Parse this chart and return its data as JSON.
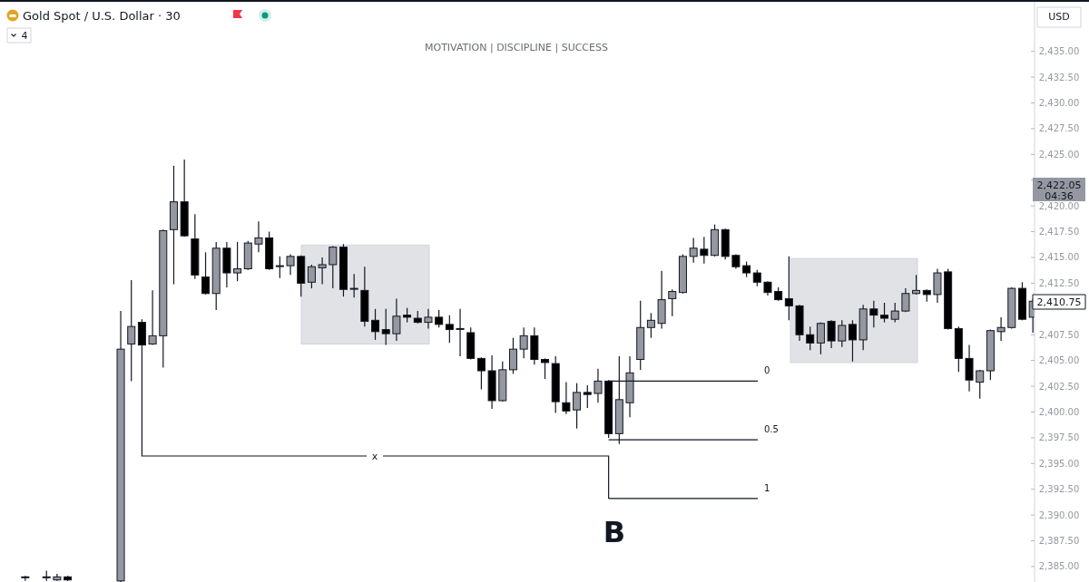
{
  "chart_data": {
    "type": "candlestick",
    "title": "Gold Spot / U.S. Dollar · 30",
    "subtitle": "MOTIVATION | DISCIPLINE | SUCCESS",
    "categories": [
      null,
      null,
      null,
      null,
      null,
      null,
      null,
      null,
      null,
      null,
      null,
      null,
      null,
      null,
      null,
      null,
      null,
      null,
      null,
      null,
      null,
      null,
      null,
      null,
      null,
      null,
      null,
      null,
      null,
      null,
      null,
      null,
      null,
      null,
      null,
      null,
      null,
      null,
      null,
      null,
      null,
      null,
      null,
      null,
      null,
      null,
      null,
      null,
      null,
      null,
      null,
      null,
      null,
      null,
      null,
      null,
      null,
      null,
      null,
      null,
      null,
      null,
      null,
      null,
      null,
      null,
      null,
      null,
      null,
      null,
      null,
      null,
      null,
      null,
      null,
      null,
      null,
      null,
      null,
      null,
      null,
      null,
      null,
      null,
      null,
      null,
      null,
      null,
      null,
      null,
      null,
      null,
      null,
      null,
      null,
      null
    ],
    "ohlc": [
      [
        2384.0,
        2384.1,
        2383.6,
        2384.0
      ],
      null,
      [
        2384.0,
        2384.6,
        2383.6,
        2384.0
      ],
      [
        2383.7,
        2384.3,
        2383.6,
        2384.0
      ],
      [
        2384.0,
        2384.1,
        2383.6,
        2383.7
      ],
      null,
      null,
      null,
      null,
      [
        2383.6,
        2409.8,
        2383.5,
        2406.1
      ],
      [
        2406.6,
        2412.8,
        2403.0,
        2408.3
      ],
      [
        2408.7,
        2409.0,
        2406.4,
        2406.5
      ],
      [
        2406.6,
        2411.8,
        2406.5,
        2407.4
      ],
      [
        2407.4,
        2417.7,
        2404.3,
        2417.6
      ],
      [
        2417.7,
        2423.9,
        2412.4,
        2420.4
      ],
      [
        2420.4,
        2424.5,
        2417.0,
        2417.1
      ],
      [
        2416.8,
        2419.2,
        2412.9,
        2413.3
      ],
      [
        2413.1,
        2415.5,
        2411.4,
        2411.5
      ],
      [
        2411.5,
        2416.5,
        2409.9,
        2415.9
      ],
      [
        2415.9,
        2416.5,
        2412.1,
        2413.5
      ],
      [
        2413.5,
        2416.5,
        2412.7,
        2413.9
      ],
      [
        2413.9,
        2416.6,
        2413.8,
        2416.4
      ],
      [
        2416.3,
        2418.5,
        2415.5,
        2416.9
      ],
      [
        2416.9,
        2417.5,
        2413.8,
        2413.9
      ],
      [
        2414.2,
        2415.1,
        2413.0,
        2414.2
      ],
      [
        2414.2,
        2415.3,
        2413.3,
        2415.1
      ],
      [
        2415.1,
        2415.2,
        2411.2,
        2412.5
      ],
      [
        2412.6,
        2414.3,
        2412.0,
        2414.1
      ],
      [
        2414.0,
        2415.0,
        2412.4,
        2414.3
      ],
      [
        2414.3,
        2416.1,
        2412.0,
        2416.0
      ],
      [
        2416.0,
        2416.3,
        2411.2,
        2411.9
      ],
      [
        2412.0,
        2413.4,
        2411.1,
        2412.0
      ],
      [
        2411.8,
        2414.1,
        2408.3,
        2408.8
      ],
      [
        2408.9,
        2410.0,
        2407.0,
        2407.8
      ],
      [
        2408.0,
        2410.0,
        2406.5,
        2407.6
      ],
      [
        2407.6,
        2411.0,
        2406.9,
        2409.3
      ],
      [
        2409.4,
        2410.1,
        2408.7,
        2409.2
      ],
      [
        2409.1,
        2409.8,
        2408.6,
        2408.7
      ],
      [
        2408.7,
        2410.0,
        2408.1,
        2409.2
      ],
      [
        2409.2,
        2409.9,
        2408.2,
        2408.5
      ],
      [
        2408.5,
        2409.4,
        2406.7,
        2408.0
      ],
      [
        2408.1,
        2410.0,
        2405.4,
        2408.1
      ],
      [
        2407.7,
        2408.2,
        2405.1,
        2405.2
      ],
      [
        2405.2,
        2405.3,
        2402.2,
        2404.0
      ],
      [
        2404.0,
        2405.5,
        2400.3,
        2401.1
      ],
      [
        2401.1,
        2404.9,
        2401.0,
        2404.1
      ],
      [
        2404.1,
        2407.2,
        2403.7,
        2406.1
      ],
      [
        2406.1,
        2408.2,
        2405.2,
        2407.4
      ],
      [
        2407.4,
        2408.2,
        2404.6,
        2405.1
      ],
      [
        2405.1,
        2405.2,
        2403.2,
        2404.8
      ],
      [
        2404.7,
        2405.4,
        2399.9,
        2401.0
      ],
      [
        2400.9,
        2402.9,
        2399.8,
        2400.1
      ],
      [
        2400.2,
        2402.8,
        2398.4,
        2401.9
      ],
      [
        2401.9,
        2402.6,
        2400.4,
        2401.7
      ],
      [
        2401.8,
        2404.2,
        2400.9,
        2403.0
      ],
      [
        2403.0,
        2403.1,
        2397.5,
        2397.9
      ],
      [
        2397.9,
        2405.4,
        2396.9,
        2401.2
      ],
      [
        2400.9,
        2405.4,
        2399.5,
        2403.8
      ],
      [
        2405.1,
        2410.8,
        2404.1,
        2408.2
      ],
      [
        2408.2,
        2409.6,
        2407.2,
        2408.9
      ],
      [
        2408.6,
        2413.7,
        2408.1,
        2410.9
      ],
      [
        2411.0,
        2411.9,
        2409.3,
        2411.7
      ],
      [
        2411.6,
        2415.3,
        2411.5,
        2415.1
      ],
      [
        2415.1,
        2416.9,
        2414.5,
        2415.9
      ],
      [
        2415.8,
        2417.0,
        2414.4,
        2415.2
      ],
      [
        2415.2,
        2418.2,
        2415.1,
        2417.7
      ],
      [
        2417.7,
        2417.8,
        2414.8,
        2415.1
      ],
      [
        2415.2,
        2415.3,
        2413.9,
        2414.1
      ],
      [
        2414.2,
        2414.6,
        2413.1,
        2413.5
      ],
      [
        2413.5,
        2413.8,
        2412.2,
        2412.6
      ],
      [
        2412.6,
        2412.7,
        2411.3,
        2411.6
      ],
      [
        2411.7,
        2412.1,
        2410.8,
        2410.9
      ],
      [
        2411.0,
        2415.1,
        2408.9,
        2410.3
      ],
      [
        2410.3,
        2410.4,
        2406.9,
        2407.5
      ],
      [
        2407.5,
        2408.3,
        2406.0,
        2406.7
      ],
      [
        2406.7,
        2408.7,
        2405.6,
        2408.6
      ],
      [
        2408.8,
        2408.9,
        2406.2,
        2406.9
      ],
      [
        2406.9,
        2408.9,
        2406.3,
        2408.4
      ],
      [
        2408.5,
        2408.9,
        2404.9,
        2407.0
      ],
      [
        2407.0,
        2410.4,
        2406.0,
        2410.0
      ],
      [
        2410.0,
        2410.8,
        2408.2,
        2409.4
      ],
      [
        2409.4,
        2410.6,
        2408.7,
        2409.1
      ],
      [
        2409.0,
        2410.6,
        2408.7,
        2409.8
      ],
      [
        2409.8,
        2412.0,
        2409.7,
        2411.5
      ],
      [
        2411.5,
        2413.3,
        2411.4,
        2411.8
      ],
      [
        2411.8,
        2411.9,
        2410.7,
        2411.4
      ],
      [
        2411.4,
        2413.9,
        2410.6,
        2413.5
      ],
      [
        2413.6,
        2413.9,
        2408.0,
        2408.1
      ],
      [
        2408.1,
        2408.3,
        2403.9,
        2405.2
      ],
      [
        2405.2,
        2406.5,
        2402.0,
        2403.1
      ],
      [
        2402.9,
        2404.1,
        2401.3,
        2404.0
      ],
      [
        2404.0,
        2408.0,
        2403.1,
        2407.9
      ],
      [
        2407.8,
        2409.2,
        2406.9,
        2408.2
      ],
      [
        2408.2,
        2412.1,
        2408.1,
        2412.0
      ],
      [
        2412.0,
        2412.6,
        2408.9,
        2409.0
      ],
      [
        2409.2,
        2411.0,
        2407.7,
        2410.75
      ]
    ],
    "ylim": [
      2383.5,
      2439.9
    ],
    "yticks": [
      {
        "value": 2385,
        "label": "2,385.00"
      },
      {
        "value": 2387.5,
        "label": "2,387.50"
      },
      {
        "value": 2390,
        "label": "2,390.00"
      },
      {
        "value": 2392.5,
        "label": "2,392.50"
      },
      {
        "value": 2395,
        "label": "2,395.00"
      },
      {
        "value": 2397.5,
        "label": "2,397.50"
      },
      {
        "value": 2400,
        "label": "2,400.00"
      },
      {
        "value": 2402.5,
        "label": "2,402.50"
      },
      {
        "value": 2405,
        "label": "2,405.00"
      },
      {
        "value": 2407.5,
        "label": "2,407.50"
      },
      {
        "value": 2410,
        "label": null
      },
      {
        "value": 2412.5,
        "label": "2,412.50"
      },
      {
        "value": 2415,
        "label": "2,415.00"
      },
      {
        "value": 2417.5,
        "label": "2,417.50"
      },
      {
        "value": 2420,
        "label": "2,420.00"
      },
      {
        "value": 2422.5,
        "label": null
      },
      {
        "value": 2425,
        "label": "2,425.00"
      },
      {
        "value": 2427.5,
        "label": "2,427.50"
      },
      {
        "value": 2430,
        "label": "2,430.00"
      },
      {
        "value": 2432.5,
        "label": "2,432.50"
      },
      {
        "value": 2435,
        "label": "2,435.00"
      }
    ],
    "tick_labels": "y",
    "ref_lines": [
      {
        "axis": "y",
        "value": 2403.0,
        "color": "#131722"
      },
      {
        "axis": "y",
        "value": 2397.3,
        "color": "#131722"
      },
      {
        "axis": "y",
        "value": 2391.6,
        "color": "#131722"
      }
    ],
    "annotations": [
      "x",
      "B",
      "USD",
      "4",
      "2,422.05",
      "04:36",
      "2,410.75",
      "0",
      "0.5",
      "1"
    ]
  }
}
